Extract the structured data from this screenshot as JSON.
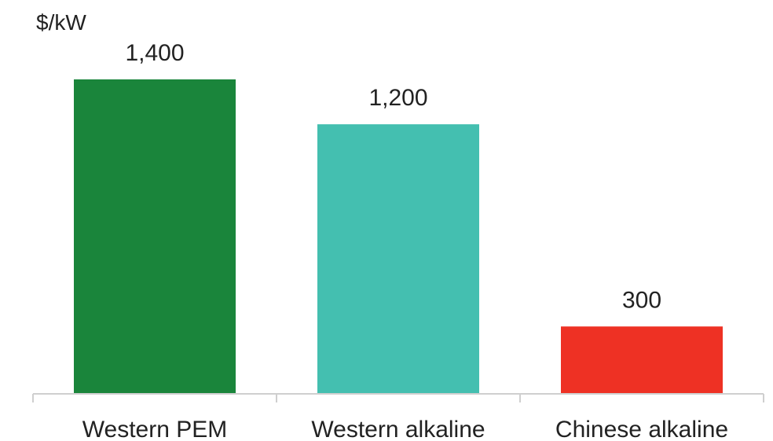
{
  "chart_data": {
    "type": "bar",
    "ylabel": "$/kW",
    "xlabel": "",
    "categories": [
      "Western PEM",
      "Western alkaline",
      "Chinese alkaline"
    ],
    "values": [
      1400,
      1200,
      300
    ],
    "value_labels": [
      "1,400",
      "1,200",
      "300"
    ],
    "colors": [
      "#1a853b",
      "#44bfb0",
      "#ee3124"
    ],
    "grid": false,
    "legend": "none"
  }
}
